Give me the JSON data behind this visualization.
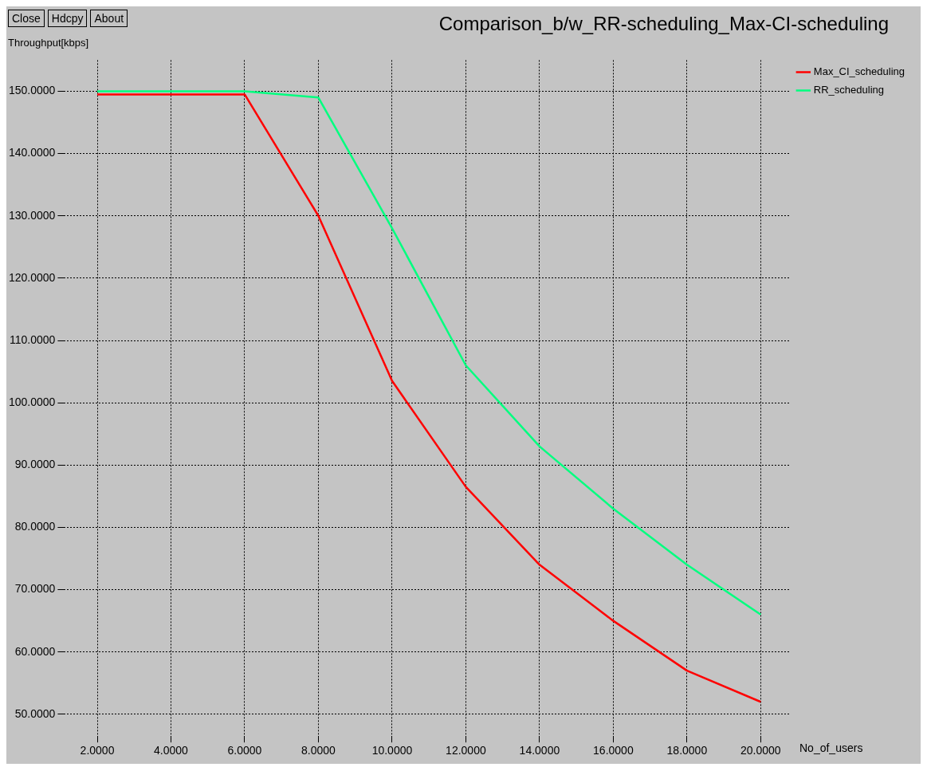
{
  "chart_data": {
    "type": "line",
    "title": "Comparison_b/w_RR-scheduling_Max-CI-scheduling",
    "xlabel": "No_of_users",
    "ylabel": "Throughput[kbps]",
    "annotations": [
      "Close",
      "Hdcpy",
      "About"
    ],
    "xlim": [
      1.1,
      20.8
    ],
    "ylim": [
      46.5,
      155
    ],
    "xticks": [
      {
        "value": 2,
        "label": "2.0000"
      },
      {
        "value": 4,
        "label": "4.0000"
      },
      {
        "value": 6,
        "label": "6.0000"
      },
      {
        "value": 8,
        "label": "8.0000"
      },
      {
        "value": 10,
        "label": "10.0000"
      },
      {
        "value": 12,
        "label": "12.0000"
      },
      {
        "value": 14,
        "label": "14.0000"
      },
      {
        "value": 16,
        "label": "16.0000"
      },
      {
        "value": 18,
        "label": "18.0000"
      },
      {
        "value": 20,
        "label": "20.0000"
      }
    ],
    "yticks": [
      {
        "value": 50,
        "label": "50.0000"
      },
      {
        "value": 60,
        "label": "60.0000"
      },
      {
        "value": 70,
        "label": "70.0000"
      },
      {
        "value": 80,
        "label": "80.0000"
      },
      {
        "value": 90,
        "label": "90.0000"
      },
      {
        "value": 100,
        "label": "100.0000"
      },
      {
        "value": 110,
        "label": "110.0000"
      },
      {
        "value": 120,
        "label": "120.0000"
      },
      {
        "value": 130,
        "label": "130.0000"
      },
      {
        "value": 140,
        "label": "140.0000"
      },
      {
        "value": 150,
        "label": "150.0000"
      }
    ],
    "grid": true,
    "legend": "top right",
    "line_style": "solid",
    "marker": "none",
    "series": [
      {
        "name": "Max_CI_scheduling",
        "color": "#ff0000",
        "x": [
          2,
          6,
          8,
          10,
          12,
          14,
          16,
          18,
          20
        ],
        "values": [
          149.5,
          149.5,
          130,
          103.5,
          86.5,
          74,
          65,
          57,
          52
        ]
      },
      {
        "name": "RR_scheduling",
        "color": "#00ff7f",
        "x": [
          2,
          6,
          8,
          10,
          12,
          14,
          16,
          18,
          20
        ],
        "values": [
          150,
          150,
          149,
          128,
          106,
          93,
          83,
          74,
          66
        ]
      }
    ]
  }
}
